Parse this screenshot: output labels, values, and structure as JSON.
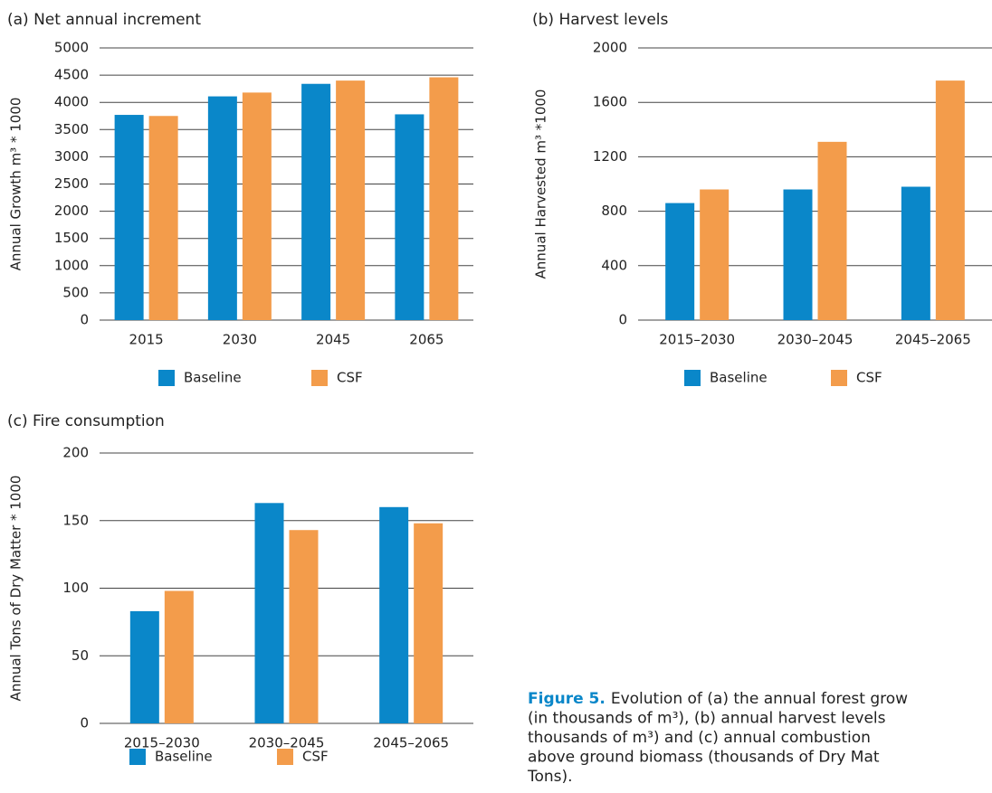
{
  "chart_data": [
    {
      "type": "bar",
      "title": "(a) Net annual increment",
      "ylabel": "Annual Growth m³ * 1000",
      "categories": [
        "2015",
        "2030",
        "2045",
        "2065"
      ],
      "series": [
        {
          "name": "Baseline",
          "color": "#0a87c9",
          "values": [
            3770,
            4110,
            4340,
            3780
          ]
        },
        {
          "name": "CSF",
          "color": "#f39c4b",
          "values": [
            3750,
            4180,
            4400,
            4460
          ]
        }
      ],
      "ylim": [
        0,
        5000
      ],
      "yticks": [
        0,
        500,
        1000,
        1500,
        2000,
        2500,
        3000,
        3500,
        4000,
        4500,
        5000
      ],
      "grid": true
    },
    {
      "type": "bar",
      "title": "(b) Harvest levels",
      "ylabel": "Annual Harvested m³ *1000",
      "categories": [
        "2015–2030",
        "2030–2045",
        "2045–2065"
      ],
      "series": [
        {
          "name": "Baseline",
          "color": "#0a87c9",
          "values": [
            860,
            960,
            980
          ]
        },
        {
          "name": "CSF",
          "color": "#f39c4b",
          "values": [
            960,
            1310,
            1760
          ]
        }
      ],
      "ylim": [
        0,
        2000
      ],
      "yticks": [
        0,
        400,
        800,
        1200,
        1600,
        2000
      ],
      "grid": true
    },
    {
      "type": "bar",
      "title": "(c) Fire consumption",
      "ylabel": "Annual Tons of Dry Matter * 1000",
      "categories": [
        "2015–2030",
        "2030–2045",
        "2045–2065"
      ],
      "series": [
        {
          "name": "Baseline",
          "color": "#0a87c9",
          "values": [
            83,
            163,
            160
          ]
        },
        {
          "name": "CSF",
          "color": "#f39c4b",
          "values": [
            98,
            143,
            148
          ]
        }
      ],
      "ylim": [
        0,
        200
      ],
      "yticks": [
        0,
        50,
        100,
        150,
        200
      ],
      "grid": true
    }
  ],
  "caption": {
    "label": "Figure 5.",
    "lines": [
      "Evolution of (a) the annual forest grow",
      "(in thousands of m³), (b) annual harvest levels",
      "thousands of m³) and (c) annual combustion",
      "above ground biomass (thousands of Dry Mat",
      "Tons)."
    ]
  }
}
